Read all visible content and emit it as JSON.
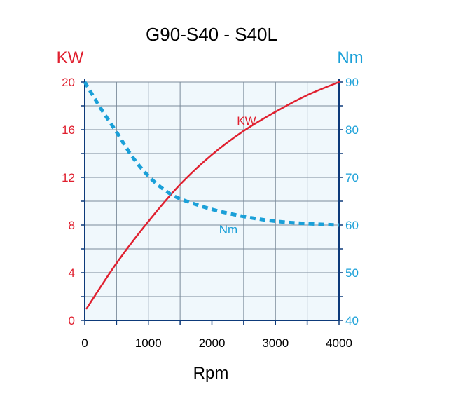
{
  "chart_data": {
    "type": "line",
    "title": "G90-S40 - S40L",
    "xlabel": "Rpm",
    "y_left_label": "KW",
    "y_right_label": "Nm",
    "xlim": [
      0,
      4000
    ],
    "ylim_left": [
      0,
      20
    ],
    "ylim_right": [
      40,
      90
    ],
    "x_ticks": [
      "0",
      "1000",
      "2000",
      "3000",
      "4000"
    ],
    "y_left_ticks": [
      "0",
      "4",
      "8",
      "12",
      "16",
      "20"
    ],
    "y_right_ticks": [
      "40",
      "50",
      "60",
      "70",
      "80",
      "90"
    ],
    "grid": true,
    "colors": {
      "kw": "#e0202f",
      "nm": "#1aa0d8",
      "grid": "#7a8a9a",
      "plot_bg": "#f0f8fc",
      "axis": "#0d3a7a"
    },
    "series": [
      {
        "name": "KW",
        "axis": "left",
        "style": "solid",
        "x": [
          30,
          500,
          1000,
          1500,
          2000,
          2500,
          3000,
          3500,
          4000
        ],
        "values": [
          1.0,
          4.8,
          8.3,
          11.4,
          13.9,
          15.9,
          17.5,
          18.9,
          20.0
        ]
      },
      {
        "name": "Nm",
        "axis": "right",
        "style": "dashed",
        "x": [
          0,
          250,
          500,
          750,
          1000,
          1250,
          1500,
          2000,
          2500,
          3000,
          3500,
          4000
        ],
        "values": [
          90,
          84.5,
          79.5,
          74.3,
          70.3,
          67.4,
          65.5,
          63.3,
          61.8,
          60.8,
          60.3,
          60.0
        ]
      }
    ]
  }
}
